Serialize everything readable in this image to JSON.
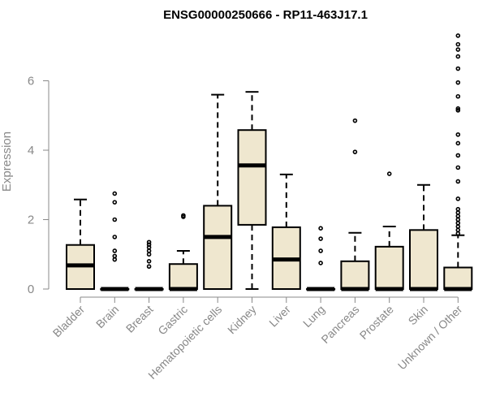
{
  "chart_data": {
    "type": "box",
    "title": "ENSG00000250666 - RP11-463J17.1",
    "xlabel": "",
    "ylabel": "Expression",
    "ylim": [
      0,
      7.6
    ],
    "yticks": [
      0,
      2,
      4,
      6
    ],
    "grid": false,
    "box_fill": "#efe7cf",
    "axis_color": "#888888",
    "categories": [
      "Bladder",
      "Brain",
      "Breast",
      "Gastric",
      "Hematopoietic cells",
      "Kidney",
      "Liver",
      "Lung",
      "Pancreas",
      "Prostate",
      "Skin",
      "Unknown / Other"
    ],
    "boxes": [
      {
        "min": 0.0,
        "q1": 0.0,
        "median": 0.68,
        "q3": 1.27,
        "max": 2.58,
        "outliers": []
      },
      {
        "min": 0.0,
        "q1": 0.0,
        "median": 0.0,
        "q3": 0.0,
        "max": 0.0,
        "outliers": [
          0.85,
          0.95,
          1.1,
          1.5,
          2.0,
          2.5,
          2.75
        ]
      },
      {
        "min": 0.0,
        "q1": 0.0,
        "median": 0.0,
        "q3": 0.0,
        "max": 0.0,
        "outliers": [
          0.65,
          0.8,
          1.0,
          1.1,
          1.2,
          1.28,
          1.35
        ]
      },
      {
        "min": 0.0,
        "q1": 0.0,
        "median": 0.0,
        "q3": 0.72,
        "max": 1.1,
        "outliers": [
          2.08,
          2.12
        ]
      },
      {
        "min": 0.0,
        "q1": 0.0,
        "median": 1.5,
        "q3": 2.4,
        "max": 5.6,
        "outliers": []
      },
      {
        "min": 0.0,
        "q1": 1.85,
        "median": 3.56,
        "q3": 4.58,
        "max": 5.68,
        "outliers": []
      },
      {
        "min": 0.0,
        "q1": 0.0,
        "median": 0.85,
        "q3": 1.78,
        "max": 3.3,
        "outliers": []
      },
      {
        "min": 0.0,
        "q1": 0.0,
        "median": 0.0,
        "q3": 0.0,
        "max": 0.0,
        "outliers": [
          0.75,
          1.1,
          1.45,
          1.75
        ]
      },
      {
        "min": 0.0,
        "q1": 0.0,
        "median": 0.0,
        "q3": 0.8,
        "max": 1.62,
        "outliers": [
          3.95,
          4.85
        ]
      },
      {
        "min": 0.0,
        "q1": 0.0,
        "median": 0.0,
        "q3": 1.22,
        "max": 1.8,
        "outliers": [
          3.32
        ]
      },
      {
        "min": 0.0,
        "q1": 0.0,
        "median": 0.0,
        "q3": 1.7,
        "max": 3.0,
        "outliers": []
      },
      {
        "min": 0.0,
        "q1": 0.0,
        "median": 0.0,
        "q3": 0.62,
        "max": 1.55,
        "outliers": [
          1.6,
          1.7,
          1.8,
          1.9,
          2.0,
          2.1,
          2.2,
          2.3,
          2.6,
          3.1,
          3.5,
          3.85,
          4.2,
          4.45,
          5.15,
          5.2,
          5.55,
          5.95,
          6.35,
          6.7,
          6.9,
          7.05,
          7.3
        ]
      }
    ]
  }
}
